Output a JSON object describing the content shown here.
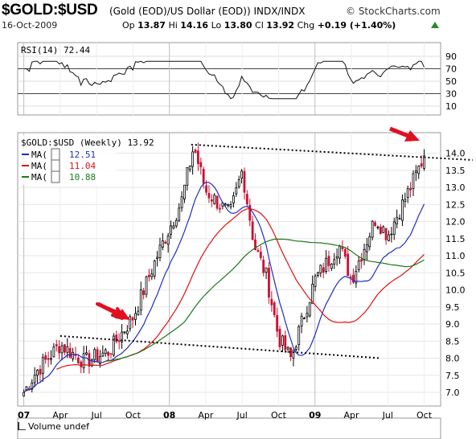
{
  "header": {
    "symbol": "$GOLD:$USD",
    "description": "(Gold (EOD)/US Dollar (EOD)) INDX/INDX",
    "brand": "© StockCharts.com",
    "date": "16-Oct-2009",
    "op_label": "Op",
    "op": "13.87",
    "hi_label": "Hi",
    "hi": "14.16",
    "lo_label": "Lo",
    "lo": "13.80",
    "cl_label": "Cl",
    "cl": "13.92",
    "chg_label": "Chg",
    "chg": "+0.19 (+1.40%)"
  },
  "rsi_panel": {
    "label": "RSI(14) 72.44",
    "ticks": [
      "90",
      "70",
      "50",
      "30",
      "10"
    ]
  },
  "price_panel": {
    "legend": {
      "main": "$GOLD:$USD (Weekly) 13.92",
      "ma1": {
        "label": "MA(",
        "value": "12.51",
        "color": "#1f2fbf"
      },
      "ma2": {
        "label": "MA(",
        "value": "11.04",
        "color": "#e01010"
      },
      "ma3": {
        "label": "MA(",
        "value": "10.88",
        "color": "#1a7a1a"
      }
    },
    "yticks": [
      "14.0",
      "13.5",
      "13.0",
      "12.5",
      "12.0",
      "11.5",
      "11.0",
      "10.5",
      "10.0",
      "9.5",
      "9.0",
      "8.5",
      "8.0",
      "7.5",
      "7.0"
    ],
    "xticks": [
      {
        "label": "07",
        "bold": true
      },
      {
        "label": "Apr",
        "bold": false
      },
      {
        "label": "Jul",
        "bold": false
      },
      {
        "label": "Oct",
        "bold": false
      },
      {
        "label": "08",
        "bold": true
      },
      {
        "label": "Apr",
        "bold": false
      },
      {
        "label": "Jul",
        "bold": false
      },
      {
        "label": "Oct",
        "bold": false
      },
      {
        "label": "09",
        "bold": true
      },
      {
        "label": "Apr",
        "bold": false
      },
      {
        "label": "Jul",
        "bold": false
      },
      {
        "label": "Oct",
        "bold": false
      }
    ]
  },
  "volume_label": "Volume undef",
  "colors": {
    "up": "#000000",
    "down": "#cc1133",
    "ma_fast": "#1f2fbf",
    "ma_mid": "#e01010",
    "ma_slow": "#1a7a1a",
    "arrow": "#e01020",
    "rsi_fill": "#4a7a4a"
  },
  "chart_data": {
    "type": "candlestick",
    "title": "$GOLD:$USD (Weekly)",
    "ylim": [
      6.6,
      14.6
    ],
    "price_path": [
      {
        "x": "2007-01",
        "y": 7.0
      },
      {
        "x": "2007-02",
        "y": 7.6
      },
      {
        "x": "2007-04",
        "y": 8.4
      },
      {
        "x": "2007-06",
        "y": 7.9
      },
      {
        "x": "2007-08",
        "y": 8.2
      },
      {
        "x": "2007-10",
        "y": 9.2
      },
      {
        "x": "2007-12",
        "y": 11.0
      },
      {
        "x": "2008-02",
        "y": 12.6
      },
      {
        "x": "2008-03",
        "y": 14.2
      },
      {
        "x": "2008-04",
        "y": 12.9
      },
      {
        "x": "2008-06",
        "y": 12.2
      },
      {
        "x": "2008-07",
        "y": 13.5
      },
      {
        "x": "2008-08",
        "y": 11.3
      },
      {
        "x": "2008-09",
        "y": 10.4
      },
      {
        "x": "2008-10",
        "y": 8.6
      },
      {
        "x": "2008-11",
        "y": 8.0
      },
      {
        "x": "2009-01",
        "y": 10.3
      },
      {
        "x": "2009-03",
        "y": 11.3
      },
      {
        "x": "2009-04",
        "y": 10.3
      },
      {
        "x": "2009-06",
        "y": 12.1
      },
      {
        "x": "2009-07",
        "y": 11.6
      },
      {
        "x": "2009-09",
        "y": 13.1
      },
      {
        "x": "2009-10",
        "y": 13.92
      }
    ],
    "ma_series": [
      {
        "name": "MA(?)",
        "value": 12.51
      },
      {
        "name": "MA(?)",
        "value": 11.04
      },
      {
        "name": "MA(?)",
        "value": 10.88
      }
    ]
  }
}
